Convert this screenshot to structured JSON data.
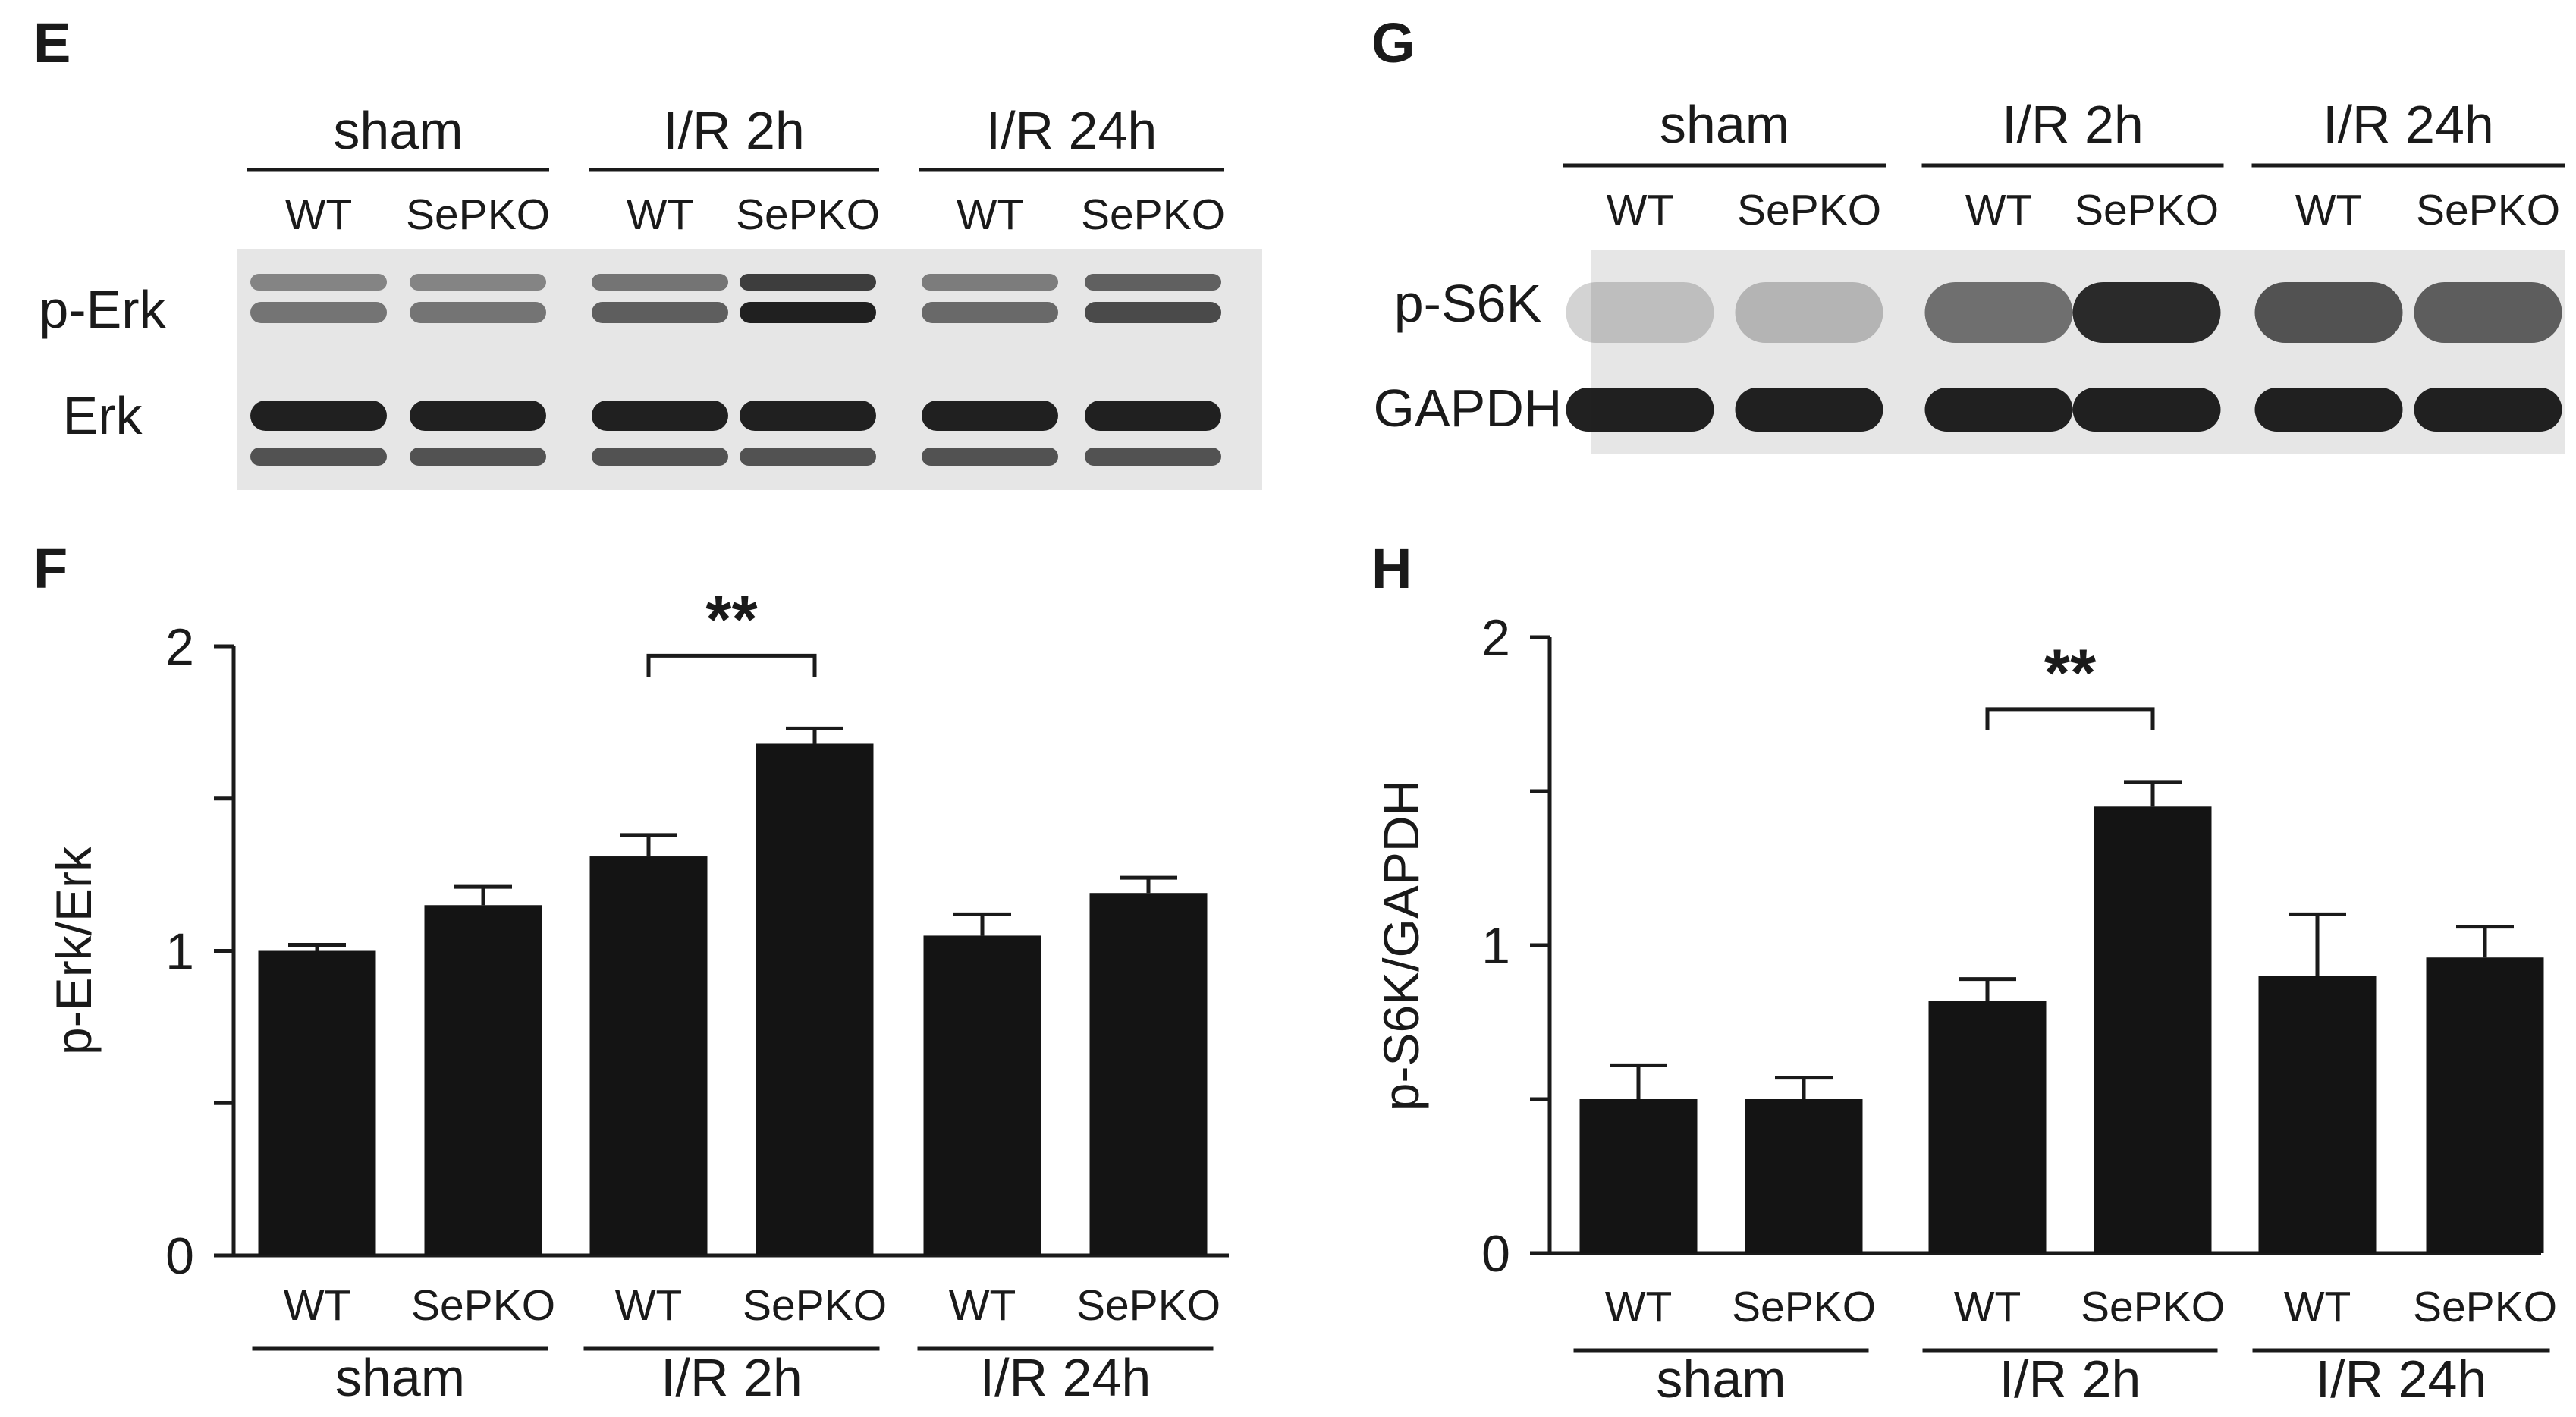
{
  "panel_letters": {
    "e": "E",
    "f": "F",
    "g": "G",
    "h": "H"
  },
  "blots": {
    "erk": {
      "groups": [
        "sham",
        "I/R 2h",
        "I/R 24h"
      ],
      "lanes": [
        "WT",
        "SePKO",
        "WT",
        "SePKO",
        "WT",
        "SePKO"
      ],
      "rows": [
        "p-Erk",
        "Erk"
      ],
      "band_intensity": {
        "p-Erk": [
          0.55,
          0.55,
          0.65,
          0.95,
          0.6,
          0.75
        ],
        "Erk": [
          0.95,
          0.95,
          0.95,
          0.95,
          0.95,
          0.95
        ]
      }
    },
    "s6k": {
      "groups": [
        "sham",
        "I/R 2h",
        "I/R 24h"
      ],
      "lanes": [
        "WT",
        "SePKO",
        "WT",
        "SePKO",
        "WT",
        "SePKO"
      ],
      "rows": [
        "p-S6K",
        "GAPDH"
      ],
      "band_intensity": {
        "p-S6K": [
          0.2,
          0.25,
          0.6,
          0.95,
          0.75,
          0.7
        ],
        "GAPDH": [
          0.95,
          0.95,
          0.95,
          0.95,
          0.95,
          0.95
        ]
      }
    }
  },
  "chart_data": [
    {
      "type": "bar",
      "panel": "F",
      "categories": [
        "WT",
        "SePKO",
        "WT",
        "SePKO",
        "WT",
        "SePKO"
      ],
      "groups": [
        "sham",
        "I/R 2h",
        "I/R 24h"
      ],
      "values": [
        1.0,
        1.15,
        1.31,
        1.68,
        1.05,
        1.19
      ],
      "errors": [
        0.02,
        0.06,
        0.07,
        0.05,
        0.07,
        0.05
      ],
      "ylabel": "p-Erk/Erk",
      "ylim": [
        0,
        2
      ],
      "yticks": [
        0,
        1,
        2
      ],
      "significance": {
        "between": [
          2,
          3
        ],
        "label": "**"
      },
      "grid": false
    },
    {
      "type": "bar",
      "panel": "H",
      "categories": [
        "WT",
        "SePKO",
        "WT",
        "SePKO",
        "WT",
        "SePKO"
      ],
      "groups": [
        "sham",
        "I/R 2h",
        "I/R 24h"
      ],
      "values": [
        0.5,
        0.5,
        0.82,
        1.45,
        0.9,
        0.96
      ],
      "errors": [
        0.11,
        0.07,
        0.07,
        0.08,
        0.2,
        0.1
      ],
      "ylabel": "p-S6K/GAPDH",
      "ylim": [
        0,
        2
      ],
      "yticks": [
        0,
        1,
        2
      ],
      "significance": {
        "between": [
          2,
          3
        ],
        "label": "**"
      },
      "grid": false
    }
  ],
  "colors": {
    "bar": "#141414",
    "axis": "#1a1a1a",
    "blot_bg": "#e6e6e6",
    "band": "#151515"
  }
}
